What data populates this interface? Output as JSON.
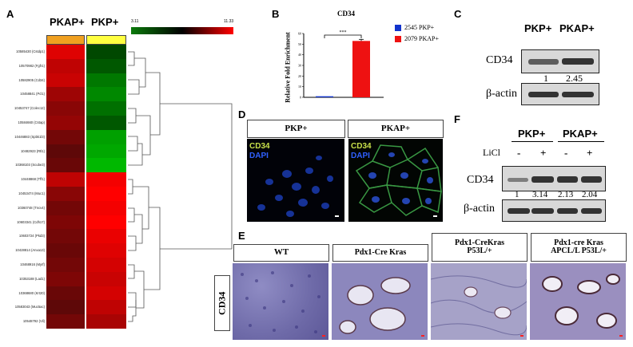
{
  "panels": {
    "a": "A",
    "b": "B",
    "c": "C",
    "d": "D",
    "e": "E",
    "f": "F"
  },
  "heatmap": {
    "col1": "PKAP+",
    "col2": "PKP+",
    "scale_min": "3.11",
    "scale_max": "11.33",
    "colors": {
      "low": "#0a7a0a",
      "mid": "#000000",
      "high": "#ff0000",
      "col1_bar": "#f0a020",
      "col2_bar": "#ffff40"
    },
    "genes": [
      "10585430 (Cstdp1)",
      "10570982 (Fgfr1)",
      "10582905 (Cd34)",
      "10458841 (Pcl1)",
      "10453747 (Colec12)",
      "10584660 (Cstap)",
      "10446883 (Spbk1l3)",
      "10482923 (Rtl1)",
      "10368103 (Scube3)",
      "10448868 (Tff1)",
      "10453474 (Muc1)",
      "10360748 (Tncv4)",
      "10603341 (Cdh17)",
      "10603724 (Pkd3)",
      "10428814 (Anxa13)",
      "10468916 (Myrf)",
      "10353188 (Lad1)",
      "10368680 (Krt20)",
      "10583043 (Muc5ac)",
      "10548792 (Vil)"
    ],
    "values_pkap": [
      0.85,
      0.7,
      0.75,
      0.55,
      0.45,
      0.5,
      0.35,
      0.25,
      0.3,
      0.7,
      0.45,
      0.35,
      0.4,
      0.35,
      0.3,
      0.35,
      0.4,
      0.3,
      0.25,
      0.35
    ],
    "values_pkp": [
      -0.2,
      -0.3,
      -0.5,
      -0.6,
      -0.45,
      -0.3,
      -0.75,
      -0.8,
      -0.9,
      0.95,
      1.0,
      0.95,
      1.0,
      0.9,
      0.85,
      0.8,
      0.75,
      0.8,
      0.7,
      0.6
    ]
  },
  "chart_data": {
    "type": "bar",
    "title": "CD34",
    "ylabel": "Relative Fold Enrichment",
    "categories": [
      "2545 PKP+",
      "2079 PKAP+"
    ],
    "values": [
      1,
      53
    ],
    "ylim": [
      0,
      60
    ],
    "yticks": [
      "0",
      "10",
      "20",
      "30",
      "40",
      "50",
      "60"
    ],
    "significance": "***",
    "legend": [
      {
        "name": "2545 PKP+",
        "color": "#1133cc"
      },
      {
        "name": "2079 PKAP+",
        "color": "#ee1111"
      }
    ],
    "colors": [
      "#1133cc",
      "#ee1111"
    ]
  },
  "blot_c": {
    "col1": "PKP+",
    "col2": "PKAP+",
    "row1": "CD34",
    "row2": "β-actin",
    "q1": "1",
    "q2": "2.45"
  },
  "panel_d": {
    "left": "PKP+",
    "right": "PKAP+",
    "stain1": "CD34",
    "stain2": "DAPI"
  },
  "blot_f": {
    "col1": "PKP+",
    "col2": "PKAP+",
    "licl": "LiCl",
    "minus": "-",
    "plus": "+",
    "row1": "CD34",
    "row2": "β-actin",
    "q": [
      "1",
      "3.14",
      "2.13",
      "2.04"
    ]
  },
  "panel_e": {
    "side": "CD34",
    "titles": [
      "WT",
      "Pdx1-Cre Kras",
      "Pdx1-CreKras\nP53L/+",
      "Pdx1-cre Kras\nAPCL/L P53L/+"
    ]
  }
}
